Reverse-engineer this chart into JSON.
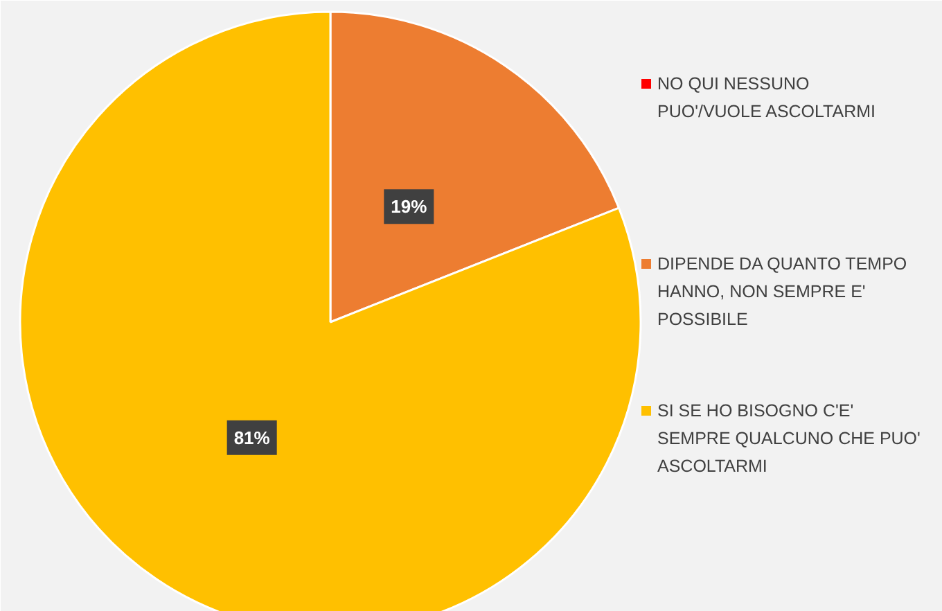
{
  "chart_data": {
    "type": "pie",
    "categories": [
      "NO QUI NESSUNO PUO'/VUOLE ASCOLTARMI",
      "DIPENDE DA QUANTO TEMPO HANNO, NON SEMPRE E' POSSIBILE",
      "SI SE HO BISOGNO C'E' SEMPRE QUALCUNO CHE PUO' ASCOLTARMI"
    ],
    "values": [
      0,
      19,
      81
    ],
    "colors": [
      "#ff0000",
      "#ed7d31",
      "#ffc000"
    ],
    "value_labels": [
      null,
      "19%",
      "81%"
    ],
    "legend": "right"
  }
}
